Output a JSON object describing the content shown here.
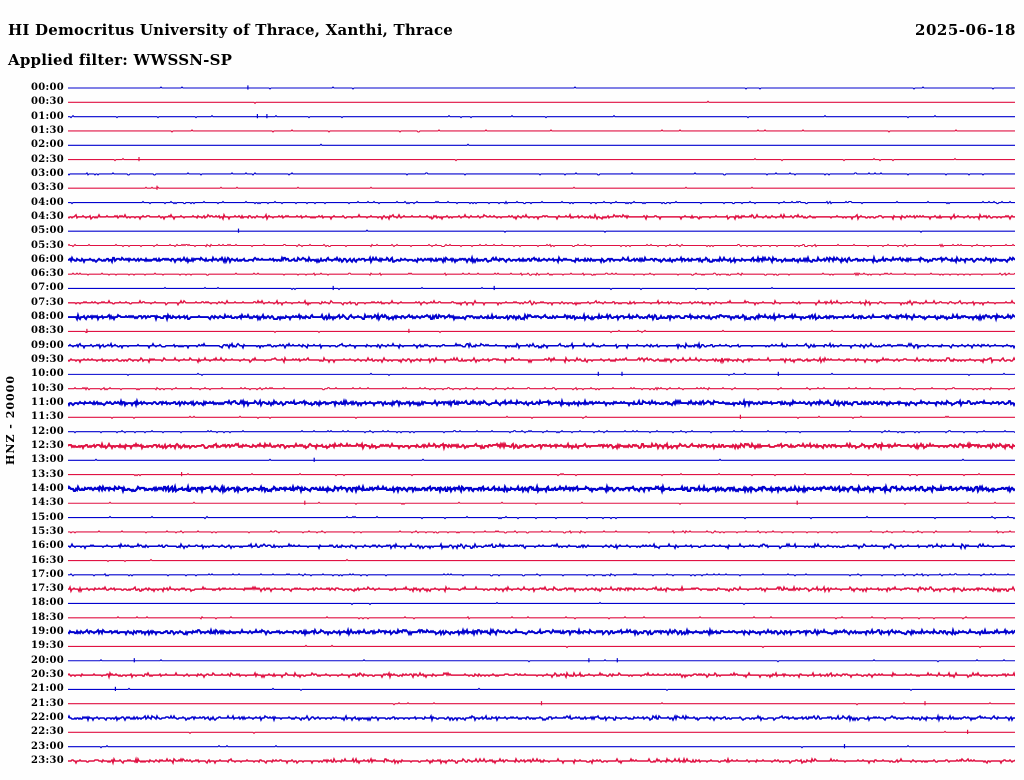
{
  "header": {
    "title": "HI Democritus University of Thrace, Xanthi, Thrace",
    "date": "2025-06-18",
    "filter_label": "Applied filter: WWSSN-SP"
  },
  "chart_data": {
    "type": "line",
    "subtype": "helicorder-dayplot",
    "title": "HI Democritus University of Thrace, Xanthi, Thrace",
    "date": "2025-06-18",
    "filter": "WWSSN-SP",
    "channel_scale_label": "HNZ - 20000",
    "row_interval_minutes": 30,
    "rows_count": 48,
    "legend": "none",
    "grid": false,
    "trace_colors_hex": {
      "blue": "#0202CE",
      "red": "#E01243"
    },
    "rows": [
      {
        "time": "00:00",
        "color": "blue",
        "noise_level": 0.4,
        "spikes": [
          0.19
        ]
      },
      {
        "time": "00:30",
        "color": "red",
        "noise_level": 0.2,
        "spikes": []
      },
      {
        "time": "01:00",
        "color": "blue",
        "noise_level": 0.9,
        "spikes": [
          0.2,
          0.21
        ]
      },
      {
        "time": "01:30",
        "color": "red",
        "noise_level": 0.7,
        "spikes": []
      },
      {
        "time": "02:00",
        "color": "blue",
        "noise_level": 0.2,
        "spikes": []
      },
      {
        "time": "02:30",
        "color": "red",
        "noise_level": 0.4,
        "spikes": [
          0.075
        ]
      },
      {
        "time": "03:00",
        "color": "blue",
        "noise_level": 1.2,
        "spikes": []
      },
      {
        "time": "03:30",
        "color": "red",
        "noise_level": 0.4,
        "spikes": [
          0.094
        ]
      },
      {
        "time": "04:00",
        "color": "blue",
        "noise_level": 2.0,
        "spikes": []
      },
      {
        "time": "04:30",
        "color": "red",
        "noise_level": 3.0,
        "spikes": []
      },
      {
        "time": "05:00",
        "color": "blue",
        "noise_level": 0.4,
        "spikes": [
          0.18
        ]
      },
      {
        "time": "05:30",
        "color": "red",
        "noise_level": 2.0,
        "spikes": []
      },
      {
        "time": "06:00",
        "color": "blue",
        "noise_level": 4.0,
        "spikes": [
          0.89
        ]
      },
      {
        "time": "06:30",
        "color": "red",
        "noise_level": 2.0,
        "spikes": []
      },
      {
        "time": "07:00",
        "color": "blue",
        "noise_level": 0.4,
        "spikes": [
          0.28,
          0.45
        ]
      },
      {
        "time": "07:30",
        "color": "red",
        "noise_level": 2.8,
        "spikes": []
      },
      {
        "time": "08:00",
        "color": "blue",
        "noise_level": 4.0,
        "spikes": []
      },
      {
        "time": "08:30",
        "color": "red",
        "noise_level": 0.4,
        "spikes": [
          0.02,
          0.36
        ]
      },
      {
        "time": "09:00",
        "color": "blue",
        "noise_level": 3.0,
        "spikes": []
      },
      {
        "time": "09:30",
        "color": "red",
        "noise_level": 3.2,
        "spikes": []
      },
      {
        "time": "10:00",
        "color": "blue",
        "noise_level": 0.5,
        "spikes": [
          0.56,
          0.585,
          0.75
        ]
      },
      {
        "time": "10:30",
        "color": "red",
        "noise_level": 2.0,
        "spikes": []
      },
      {
        "time": "11:00",
        "color": "blue",
        "noise_level": 4.0,
        "spikes": []
      },
      {
        "time": "11:30",
        "color": "red",
        "noise_level": 0.7,
        "spikes": [
          0.71
        ]
      },
      {
        "time": "12:00",
        "color": "blue",
        "noise_level": 1.6,
        "spikes": []
      },
      {
        "time": "12:30",
        "color": "red",
        "noise_level": 4.0,
        "spikes": []
      },
      {
        "time": "13:00",
        "color": "blue",
        "noise_level": 0.4,
        "spikes": [
          0.26
        ]
      },
      {
        "time": "13:30",
        "color": "red",
        "noise_level": 0.9,
        "spikes": [
          0.12
        ]
      },
      {
        "time": "14:00",
        "color": "blue",
        "noise_level": 4.5,
        "spikes": []
      },
      {
        "time": "14:30",
        "color": "red",
        "noise_level": 0.4,
        "spikes": [
          0.25,
          0.77
        ]
      },
      {
        "time": "15:00",
        "color": "blue",
        "noise_level": 0.7,
        "spikes": []
      },
      {
        "time": "15:30",
        "color": "red",
        "noise_level": 1.8,
        "spikes": []
      },
      {
        "time": "16:00",
        "color": "blue",
        "noise_level": 3.0,
        "spikes": []
      },
      {
        "time": "16:30",
        "color": "red",
        "noise_level": 0.3,
        "spikes": []
      },
      {
        "time": "17:00",
        "color": "blue",
        "noise_level": 1.8,
        "spikes": []
      },
      {
        "time": "17:30",
        "color": "red",
        "noise_level": 3.3,
        "spikes": []
      },
      {
        "time": "18:00",
        "color": "blue",
        "noise_level": 0.3,
        "spikes": []
      },
      {
        "time": "18:30",
        "color": "red",
        "noise_level": 1.0,
        "spikes": []
      },
      {
        "time": "19:00",
        "color": "blue",
        "noise_level": 4.0,
        "spikes": []
      },
      {
        "time": "19:30",
        "color": "red",
        "noise_level": 0.3,
        "spikes": []
      },
      {
        "time": "20:00",
        "color": "blue",
        "noise_level": 0.5,
        "spikes": [
          0.07,
          0.55,
          0.58
        ]
      },
      {
        "time": "20:30",
        "color": "red",
        "noise_level": 3.0,
        "spikes": []
      },
      {
        "time": "21:00",
        "color": "blue",
        "noise_level": 0.4,
        "spikes": [
          0.05
        ]
      },
      {
        "time": "21:30",
        "color": "red",
        "noise_level": 0.4,
        "spikes": [
          0.5,
          0.905
        ]
      },
      {
        "time": "22:00",
        "color": "blue",
        "noise_level": 3.6,
        "spikes": []
      },
      {
        "time": "22:30",
        "color": "red",
        "noise_level": 0.3,
        "spikes": [
          0.95
        ]
      },
      {
        "time": "23:00",
        "color": "blue",
        "noise_level": 0.3,
        "spikes": [
          0.82
        ]
      },
      {
        "time": "23:30",
        "color": "red",
        "noise_level": 3.0,
        "spikes": []
      }
    ]
  }
}
